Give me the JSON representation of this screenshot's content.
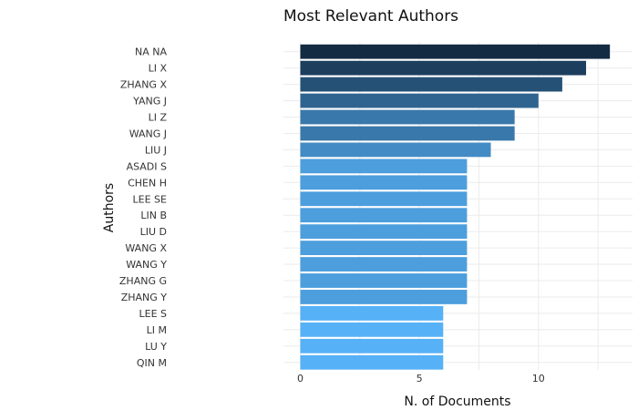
{
  "chart_data": {
    "type": "bar",
    "orientation": "horizontal",
    "title": "Most Relevant Authors",
    "xlabel": "N. of Documents",
    "ylabel": "Authors",
    "categories": [
      "NA NA",
      "LI X",
      "ZHANG X",
      "YANG J",
      "LI Z",
      "WANG J",
      "LIU J",
      "ASADI S",
      "CHEN H",
      "LEE SE",
      "LIN B",
      "LIU D",
      "WANG X",
      "WANG Y",
      "ZHANG G",
      "ZHANG Y",
      "LEE S",
      "LI M",
      "LU Y",
      "QIN M"
    ],
    "values": [
      13,
      12,
      11,
      10,
      9,
      9,
      8,
      7,
      7,
      7,
      7,
      7,
      7,
      7,
      7,
      7,
      6,
      6,
      6,
      6
    ],
    "xlim": [
      0,
      13.3
    ],
    "xticks": [
      0,
      5,
      10
    ],
    "grid": true,
    "legend": "none",
    "color_scale": {
      "low": "#56b1f7",
      "high": "#132b43"
    }
  }
}
